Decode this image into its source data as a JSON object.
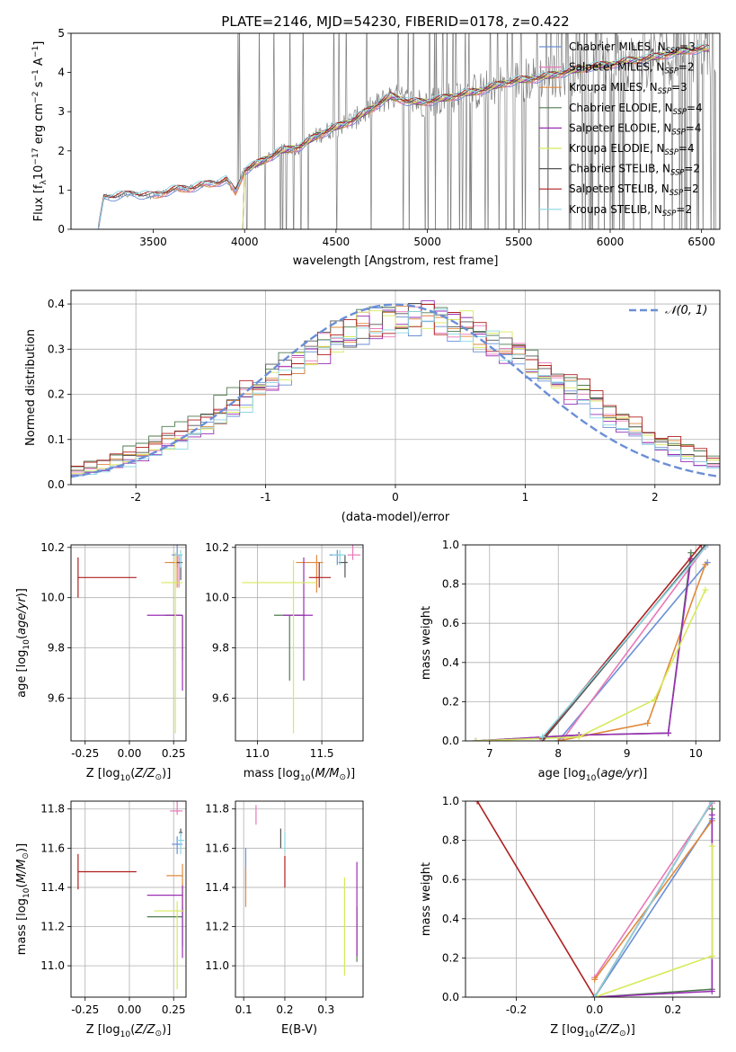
{
  "figure": {
    "title": "PLATE=2146, MJD=54230, FIBERID=0178, z=0.422"
  },
  "colors": {
    "Chabrier MILES": "#6b8fd6",
    "Salpeter MILES": "#e879b8",
    "Kroupa MILES": "#e08a3c",
    "Chabrier ELODIE": "#4f7a4f",
    "Salpeter ELODIE": "#9a2fb5",
    "Kroupa ELODIE": "#d7ea5a",
    "Chabrier STELIB": "#555555",
    "Salpeter STELIB": "#b01f1f",
    "Kroupa STELIB": "#8ad7e3",
    "data": "#808080",
    "normal": "#6b8fd6"
  },
  "chart_data": [
    {
      "id": "spectrum",
      "type": "line",
      "title": "PLATE=2146, MJD=54230, FIBERID=0178, z=0.422",
      "xlabel": "wavelength [Angstrom, rest frame]",
      "ylabel": "Flux [f_λ 10^-17 erg cm^-2 s^-1 A^-1]",
      "xlim": [
        3050,
        6600
      ],
      "ylim": [
        0,
        5
      ],
      "xticks": [
        3500,
        4000,
        4500,
        5000,
        5500,
        6000,
        6500
      ],
      "yticks": [
        0,
        1,
        2,
        3,
        4,
        5
      ],
      "grid": false,
      "legend_position": "right",
      "legend": [
        "Chabrier MILES, N_SSP=3",
        "Salpeter MILES, N_SSP=2",
        "Kroupa MILES, N_SSP=3",
        "Chabrier ELODIE, N_SSP=4",
        "Salpeter ELODIE, N_SSP=4",
        "Kroupa ELODIE, N_SSP=4",
        "Chabrier STELIB, N_SSP=2",
        "Salpeter STELIB, N_SSP=2",
        "Kroupa STELIB, N_SSP=2"
      ],
      "model_continuum": {
        "x": [
          3200,
          3230,
          3300,
          3400,
          3500,
          3600,
          3700,
          3800,
          3900,
          3950,
          4000,
          4100,
          4200,
          4300,
          4400,
          4500,
          4600,
          4700,
          4800,
          4900,
          5000,
          5100,
          5200,
          5300,
          5400,
          5500,
          5600,
          5700,
          5800,
          5900,
          6000,
          6100,
          6200,
          6300,
          6400,
          6500
        ],
        "y": [
          0,
          0.8,
          0.85,
          0.9,
          0.85,
          1.0,
          1.05,
          1.15,
          1.25,
          0.95,
          1.5,
          1.75,
          2.0,
          2.1,
          2.4,
          2.6,
          2.8,
          3.1,
          3.4,
          3.25,
          3.25,
          3.35,
          3.45,
          3.55,
          3.7,
          3.8,
          3.85,
          3.95,
          4.05,
          4.15,
          4.2,
          4.3,
          4.35,
          4.45,
          4.55,
          4.6
        ]
      }
    },
    {
      "id": "residuals",
      "type": "line",
      "xlabel": "(data-model)/error",
      "ylabel": "Normed distribution",
      "xlim": [
        -2.5,
        2.5
      ],
      "ylim": [
        0,
        0.43
      ],
      "xticks": [
        -2,
        -1,
        0,
        1,
        2
      ],
      "yticks": [
        0.0,
        0.1,
        0.2,
        0.3,
        0.4
      ],
      "grid": true,
      "legend_position": "top-right",
      "legend": [
        "𝒩(0, 1)"
      ],
      "reference_curve": "standard normal, peak 0.40 at 0"
    },
    {
      "id": "age-vs-Z",
      "type": "scatter",
      "xlabel": "Z [log10(Z/Z⊙)]",
      "ylabel": "age  [log10(age/yr)]",
      "xlim": [
        -0.33,
        0.32
      ],
      "ylim": [
        9.43,
        10.21
      ],
      "xticks": [
        -0.25,
        0.0,
        0.25
      ],
      "yticks": [
        9.6,
        9.8,
        10.0,
        10.2
      ],
      "grid": true,
      "points": [
        {
          "model": "Chabrier MILES",
          "x": 0.27,
          "y": 10.17,
          "xerr": [
            0.03,
            0.03
          ],
          "yerr": [
            0.05,
            0.05
          ]
        },
        {
          "model": "Salpeter MILES",
          "x": 0.28,
          "y": 10.14,
          "xerr": [
            0.05,
            0.02
          ],
          "yerr": [
            0.1,
            0.03
          ]
        },
        {
          "model": "Kroupa MILES",
          "x": 0.27,
          "y": 10.14,
          "xerr": [
            0.07,
            0.02
          ],
          "yerr": [
            0.1,
            0.03
          ]
        },
        {
          "model": "Chabrier ELODIE",
          "x": 0.3,
          "y": 9.93,
          "xerr": [
            0.1,
            0.0
          ],
          "yerr": [
            0.18,
            0.0
          ]
        },
        {
          "model": "Salpeter ELODIE",
          "x": 0.3,
          "y": 9.93,
          "xerr": [
            0.2,
            0.0
          ],
          "yerr": [
            0.3,
            0.0
          ]
        },
        {
          "model": "Kroupa ELODIE",
          "x": 0.26,
          "y": 10.06,
          "xerr": [
            0.08,
            0.04
          ],
          "yerr": [
            0.6,
            0.12
          ]
        },
        {
          "model": "Chabrier STELIB",
          "x": 0.29,
          "y": 10.14,
          "xerr": [
            0.02,
            0.01
          ],
          "yerr": [
            0.07,
            0.03
          ]
        },
        {
          "model": "Salpeter STELIB",
          "x": -0.29,
          "y": 10.08,
          "xerr": [
            0.0,
            0.33
          ],
          "yerr": [
            0.08,
            0.08
          ]
        },
        {
          "model": "Kroupa STELIB",
          "x": 0.29,
          "y": 10.17,
          "xerr": [
            0.03,
            0.01
          ],
          "yerr": [
            0.05,
            0.02
          ]
        }
      ]
    },
    {
      "id": "age-vs-mass",
      "type": "scatter",
      "xlabel": "mass [log10(M/M⊙)]",
      "ylabel": "",
      "xlim": [
        10.83,
        11.82
      ],
      "ylim": [
        9.43,
        10.21
      ],
      "xticks": [
        11.0,
        11.5
      ],
      "yticks": [
        9.6,
        9.8,
        10.0,
        10.2
      ],
      "grid": true,
      "points": [
        {
          "model": "Chabrier MILES",
          "x": 11.62,
          "y": 10.17,
          "xerr": [
            0.06,
            0.03
          ],
          "yerr": [
            0.04,
            0.02
          ]
        },
        {
          "model": "Salpeter MILES",
          "x": 11.74,
          "y": 10.17,
          "xerr": [
            0.04,
            0.06
          ],
          "yerr": [
            0.02,
            0.05
          ]
        },
        {
          "model": "Kroupa MILES",
          "x": 11.46,
          "y": 10.14,
          "xerr": [
            0.16,
            0.05
          ],
          "yerr": [
            0.12,
            0.03
          ]
        },
        {
          "model": "Chabrier ELODIE",
          "x": 11.25,
          "y": 9.93,
          "xerr": [
            0.12,
            0.12
          ],
          "yerr": [
            0.26,
            0.0
          ]
        },
        {
          "model": "Salpeter ELODIE",
          "x": 11.36,
          "y": 9.93,
          "xerr": [
            0.16,
            0.07
          ],
          "yerr": [
            0.26,
            0.23
          ]
        },
        {
          "model": "Kroupa ELODIE",
          "x": 11.28,
          "y": 10.06,
          "xerr": [
            0.4,
            0.18
          ],
          "yerr": [
            0.6,
            0.09
          ]
        },
        {
          "model": "Chabrier STELIB",
          "x": 11.68,
          "y": 10.14,
          "xerr": [
            0.05,
            0.02
          ],
          "yerr": [
            0.06,
            0.03
          ]
        },
        {
          "model": "Salpeter STELIB",
          "x": 11.48,
          "y": 10.08,
          "xerr": [
            0.08,
            0.09
          ],
          "yerr": [
            0.04,
            0.06
          ]
        },
        {
          "model": "Kroupa STELIB",
          "x": 11.64,
          "y": 10.17,
          "xerr": [
            0.06,
            0.04
          ],
          "yerr": [
            0.04,
            0.02
          ]
        }
      ]
    },
    {
      "id": "mass-weight-vs-age",
      "type": "line",
      "xlabel": "age  [log10(age/yr)]",
      "ylabel": "mass weight",
      "xlim": [
        6.65,
        10.35
      ],
      "ylim": [
        0,
        1
      ],
      "xticks": [
        7,
        8,
        9,
        10
      ],
      "yticks": [
        0.0,
        0.2,
        0.4,
        0.6,
        0.8,
        1.0
      ],
      "grid": true,
      "series": [
        {
          "name": "Chabrier MILES",
          "x": [
            8.0,
            10.17
          ],
          "y": [
            0.0,
            0.91
          ]
        },
        {
          "name": "Salpeter MILES",
          "x": [
            8.05,
            10.14
          ],
          "y": [
            0.0,
            0.99
          ]
        },
        {
          "name": "Kroupa MILES",
          "x": [
            8.0,
            9.3,
            10.14
          ],
          "y": [
            0.0,
            0.09,
            0.9
          ]
        },
        {
          "name": "Chabrier ELODIE",
          "x": [
            6.8,
            8.3,
            9.6,
            9.93
          ],
          "y": [
            0.0,
            0.03,
            0.04,
            0.96
          ]
        },
        {
          "name": "Salpeter ELODIE",
          "x": [
            6.8,
            8.3,
            9.6,
            9.93
          ],
          "y": [
            0.0,
            0.03,
            0.04,
            0.93
          ]
        },
        {
          "name": "Kroupa ELODIE",
          "x": [
            6.8,
            8.3,
            9.4,
            10.14
          ],
          "y": [
            0.0,
            0.02,
            0.21,
            0.77
          ]
        },
        {
          "name": "Chabrier STELIB",
          "x": [
            7.77,
            10.14
          ],
          "y": [
            0.0,
            1.0
          ]
        },
        {
          "name": "Salpeter STELIB",
          "x": [
            7.77,
            10.08
          ],
          "y": [
            0.01,
            1.0
          ]
        },
        {
          "name": "Kroupa STELIB",
          "x": [
            7.77,
            10.17
          ],
          "y": [
            0.02,
            1.0
          ]
        }
      ]
    },
    {
      "id": "mass-vs-Z",
      "type": "scatter",
      "xlabel": "Z [log10(Z/Z⊙)]",
      "ylabel": "mass [log10(M/M⊙)]",
      "xlim": [
        -0.33,
        0.32
      ],
      "ylim": [
        10.84,
        11.84
      ],
      "xticks": [
        -0.25,
        0.0,
        0.25
      ],
      "yticks": [
        11.0,
        11.2,
        11.4,
        11.6,
        11.8
      ],
      "grid": true,
      "points": [
        {
          "model": "Chabrier MILES",
          "x": 0.27,
          "y": 11.62,
          "xerr": [
            0.03,
            0.03
          ],
          "yerr": [
            0.05,
            0.04
          ]
        },
        {
          "model": "Salpeter MILES",
          "x": 0.27,
          "y": 11.79,
          "xerr": [
            0.04,
            0.03
          ],
          "yerr": [
            0.02,
            0.05
          ]
        },
        {
          "model": "Kroupa MILES",
          "x": 0.3,
          "y": 11.46,
          "xerr": [
            0.09,
            0.0
          ],
          "yerr": [
            0.17,
            0.06
          ]
        },
        {
          "model": "Chabrier ELODIE",
          "x": 0.3,
          "y": 11.25,
          "xerr": [
            0.2,
            0.0
          ],
          "yerr": [
            0.15,
            0.05
          ]
        },
        {
          "model": "Salpeter ELODIE",
          "x": 0.3,
          "y": 11.36,
          "xerr": [
            0.2,
            0.0
          ],
          "yerr": [
            0.32,
            0.05
          ]
        },
        {
          "model": "Kroupa ELODIE",
          "x": 0.27,
          "y": 11.28,
          "xerr": [
            0.13,
            0.04
          ],
          "yerr": [
            0.4,
            0.05
          ]
        },
        {
          "model": "Chabrier STELIB",
          "x": 0.29,
          "y": 11.68,
          "xerr": [
            0.01,
            0.01
          ],
          "yerr": [
            0.02,
            0.02
          ]
        },
        {
          "model": "Salpeter STELIB",
          "x": -0.29,
          "y": 11.48,
          "xerr": [
            0.0,
            0.33
          ],
          "yerr": [
            0.09,
            0.09
          ]
        },
        {
          "model": "Kroupa STELIB",
          "x": 0.29,
          "y": 11.64,
          "xerr": [
            0.02,
            0.02
          ],
          "yerr": [
            0.07,
            0.04
          ]
        }
      ]
    },
    {
      "id": "mass-vs-EBV",
      "type": "scatter",
      "xlabel": "E(B-V)",
      "ylabel": "",
      "xlim": [
        0.08,
        0.39
      ],
      "ylim": [
        10.84,
        11.84
      ],
      "xticks": [
        0.1,
        0.2,
        0.3
      ],
      "yticks": [
        11.0,
        11.2,
        11.4,
        11.6,
        11.8
      ],
      "grid": true,
      "points": [
        {
          "model": "Chabrier MILES",
          "x": 0.105,
          "y": 11.5,
          "yerr": [
            0.1,
            0.1
          ]
        },
        {
          "model": "Salpeter MILES",
          "x": 0.13,
          "y": 11.77,
          "yerr": [
            0.05,
            0.05
          ]
        },
        {
          "model": "Kroupa MILES",
          "x": 0.105,
          "y": 11.4,
          "yerr": [
            0.1,
            0.1
          ]
        },
        {
          "model": "Chabrier ELODIE",
          "x": 0.375,
          "y": 11.25,
          "yerr": [
            0.23,
            0.05
          ]
        },
        {
          "model": "Salpeter ELODIE",
          "x": 0.375,
          "y": 11.3,
          "yerr": [
            0.25,
            0.23
          ]
        },
        {
          "model": "Kroupa ELODIE",
          "x": 0.345,
          "y": 11.2,
          "yerr": [
            0.25,
            0.25
          ]
        },
        {
          "model": "Chabrier STELIB",
          "x": 0.19,
          "y": 11.65,
          "yerr": [
            0.05,
            0.05
          ]
        },
        {
          "model": "Salpeter STELIB",
          "x": 0.2,
          "y": 11.48,
          "yerr": [
            0.08,
            0.08
          ]
        },
        {
          "model": "Kroupa STELIB",
          "x": 0.2,
          "y": 11.63,
          "yerr": [
            0.05,
            0.05
          ]
        }
      ]
    },
    {
      "id": "mass-weight-vs-Z",
      "type": "line",
      "xlabel": "Z [log10(Z/Z⊙)]",
      "ylabel": "mass weight",
      "xlim": [
        -0.33,
        0.32
      ],
      "ylim": [
        0,
        1
      ],
      "xticks": [
        -0.2,
        0.0,
        0.2
      ],
      "yticks": [
        0.0,
        0.2,
        0.4,
        0.6,
        0.8,
        1.0
      ],
      "grid": true,
      "series": [
        {
          "name": "Chabrier MILES",
          "x": [
            0.0,
            0.3
          ],
          "y": [
            0.0,
            0.91
          ]
        },
        {
          "name": "Salpeter MILES",
          "x": [
            0.0,
            0.3
          ],
          "y": [
            0.1,
            0.99
          ]
        },
        {
          "name": "Kroupa MILES",
          "x": [
            0.0,
            0.3
          ],
          "y": [
            0.09,
            0.9
          ]
        },
        {
          "name": "Chabrier ELODIE",
          "x": [
            0.0,
            0.3,
            0.3
          ],
          "y": [
            0.0,
            0.04,
            0.96
          ]
        },
        {
          "name": "Salpeter ELODIE",
          "x": [
            0.0,
            0.3,
            0.3
          ],
          "y": [
            0.0,
            0.03,
            0.93
          ]
        },
        {
          "name": "Kroupa ELODIE",
          "x": [
            0.0,
            0.3,
            0.3
          ],
          "y": [
            0.0,
            0.21,
            0.77
          ]
        },
        {
          "name": "Chabrier STELIB",
          "x": [
            0.0,
            0.3
          ],
          "y": [
            0.0,
            1.0
          ]
        },
        {
          "name": "Salpeter STELIB",
          "x": [
            -0.3,
            0.0,
            0.3
          ],
          "y": [
            1.0,
            0.0,
            1.0
          ]
        },
        {
          "name": "Kroupa STELIB",
          "x": [
            0.0,
            0.3
          ],
          "y": [
            0.0,
            1.0
          ]
        }
      ]
    }
  ]
}
